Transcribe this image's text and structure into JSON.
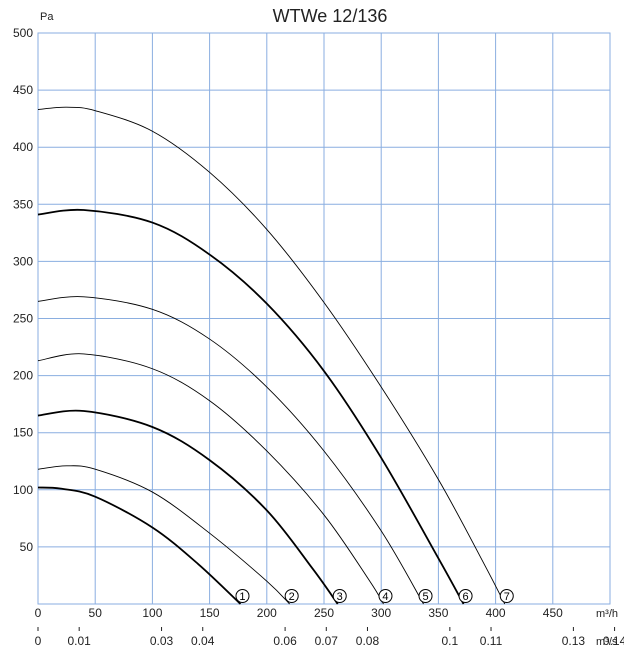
{
  "chart_data": {
    "type": "line",
    "title": "WTWe 12/136",
    "ylabel": "Pa",
    "xlabel": "m³/h",
    "x2label": "m³/s",
    "xlim": [
      0,
      500
    ],
    "ylim": [
      0,
      500
    ],
    "grid": true,
    "x_ticks": [
      0,
      50,
      100,
      150,
      200,
      250,
      300,
      350,
      400,
      450
    ],
    "y_ticks": [
      50,
      100,
      150,
      200,
      250,
      300,
      350,
      400,
      450,
      500
    ],
    "x2_ticks": [
      {
        "label": "0",
        "at": 0
      },
      {
        "label": "0.01",
        "at": 36
      },
      {
        "label": "0.03",
        "at": 108
      },
      {
        "label": "0.04",
        "at": 144
      },
      {
        "label": "0.06",
        "at": 216
      },
      {
        "label": "0.07",
        "at": 252
      },
      {
        "label": "0.08",
        "at": 288
      },
      {
        "label": "0.1",
        "at": 360
      },
      {
        "label": "0.11",
        "at": 396
      },
      {
        "label": "0.13",
        "at": 468
      },
      {
        "label": "0.14",
        "at": 504
      }
    ],
    "series": [
      {
        "marker": "1",
        "weight": "bold",
        "points": [
          [
            0,
            102
          ],
          [
            20,
            101
          ],
          [
            50,
            94
          ],
          [
            100,
            67
          ],
          [
            140,
            35
          ],
          [
            177,
            0
          ]
        ]
      },
      {
        "marker": "2",
        "weight": "thin",
        "points": [
          [
            0,
            118
          ],
          [
            25,
            121
          ],
          [
            50,
            118
          ],
          [
            100,
            98
          ],
          [
            150,
            62
          ],
          [
            200,
            20
          ],
          [
            220,
            0
          ]
        ]
      },
      {
        "marker": "3",
        "weight": "bold",
        "points": [
          [
            0,
            165
          ],
          [
            40,
            169
          ],
          [
            100,
            155
          ],
          [
            150,
            126
          ],
          [
            200,
            82
          ],
          [
            240,
            31
          ],
          [
            262,
            0
          ]
        ]
      },
      {
        "marker": "4",
        "weight": "thin",
        "points": [
          [
            0,
            213
          ],
          [
            40,
            219
          ],
          [
            100,
            206
          ],
          [
            150,
            178
          ],
          [
            200,
            134
          ],
          [
            250,
            78
          ],
          [
            290,
            20
          ],
          [
            302,
            0
          ]
        ]
      },
      {
        "marker": "5",
        "weight": "thin",
        "points": [
          [
            0,
            265
          ],
          [
            40,
            269
          ],
          [
            100,
            258
          ],
          [
            150,
            232
          ],
          [
            200,
            190
          ],
          [
            250,
            134
          ],
          [
            300,
            64
          ],
          [
            337,
            0
          ]
        ]
      },
      {
        "marker": "6",
        "weight": "bold",
        "points": [
          [
            0,
            341
          ],
          [
            40,
            345
          ],
          [
            100,
            334
          ],
          [
            150,
            306
          ],
          [
            200,
            263
          ],
          [
            250,
            204
          ],
          [
            300,
            128
          ],
          [
            350,
            40
          ],
          [
            372,
            0
          ]
        ]
      },
      {
        "marker": "7",
        "weight": "thin",
        "points": [
          [
            0,
            433
          ],
          [
            25,
            435
          ],
          [
            50,
            432
          ],
          [
            100,
            414
          ],
          [
            150,
            378
          ],
          [
            200,
            328
          ],
          [
            250,
            264
          ],
          [
            300,
            190
          ],
          [
            350,
            109
          ],
          [
            390,
            35
          ],
          [
            408,
            0
          ]
        ]
      }
    ]
  }
}
